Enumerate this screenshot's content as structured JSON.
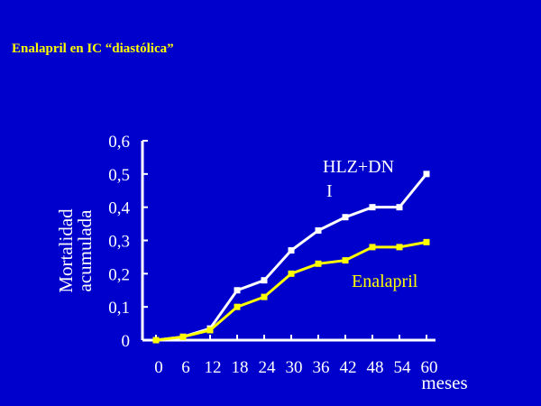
{
  "slide": {
    "title": "Enalapril en IC “diastólica”"
  },
  "colors": {
    "background": "#0000cc",
    "axis": "#ffffff",
    "title": "#ffff00"
  },
  "chart_data": {
    "type": "line",
    "title": "",
    "xlabel": "meses",
    "ylabel": [
      "Mortalidad",
      "acumulada"
    ],
    "x": [
      0,
      6,
      12,
      18,
      24,
      30,
      36,
      42,
      48,
      54,
      60
    ],
    "x_tick_labels": [
      "0",
      "6",
      "12",
      "18",
      "24",
      "30",
      "36",
      "42",
      "48",
      "54",
      "60"
    ],
    "y_tick_labels": [
      "0",
      "0,1",
      "0,2",
      "0,3",
      "0,4",
      "0,5",
      "0,6"
    ],
    "y_ticks": [
      0,
      0.1,
      0.2,
      0.3,
      0.4,
      0.5,
      0.6
    ],
    "xlim": [
      0,
      60
    ],
    "ylim": [
      0,
      0.6
    ],
    "grid": false,
    "series": [
      {
        "name": "HLZ+DN I",
        "label_lines": [
          "HLZ+DN",
          "I"
        ],
        "color": "#ffffff",
        "values": [
          0,
          0.01,
          0.035,
          0.15,
          0.18,
          0.27,
          0.33,
          0.37,
          0.4,
          0.4,
          0.5
        ]
      },
      {
        "name": "Enalapril",
        "label_lines": [
          "Enalapril"
        ],
        "color": "#ffff00",
        "values": [
          0,
          0.01,
          0.03,
          0.1,
          0.13,
          0.2,
          0.23,
          0.24,
          0.28,
          0.28,
          0.295
        ]
      }
    ]
  }
}
